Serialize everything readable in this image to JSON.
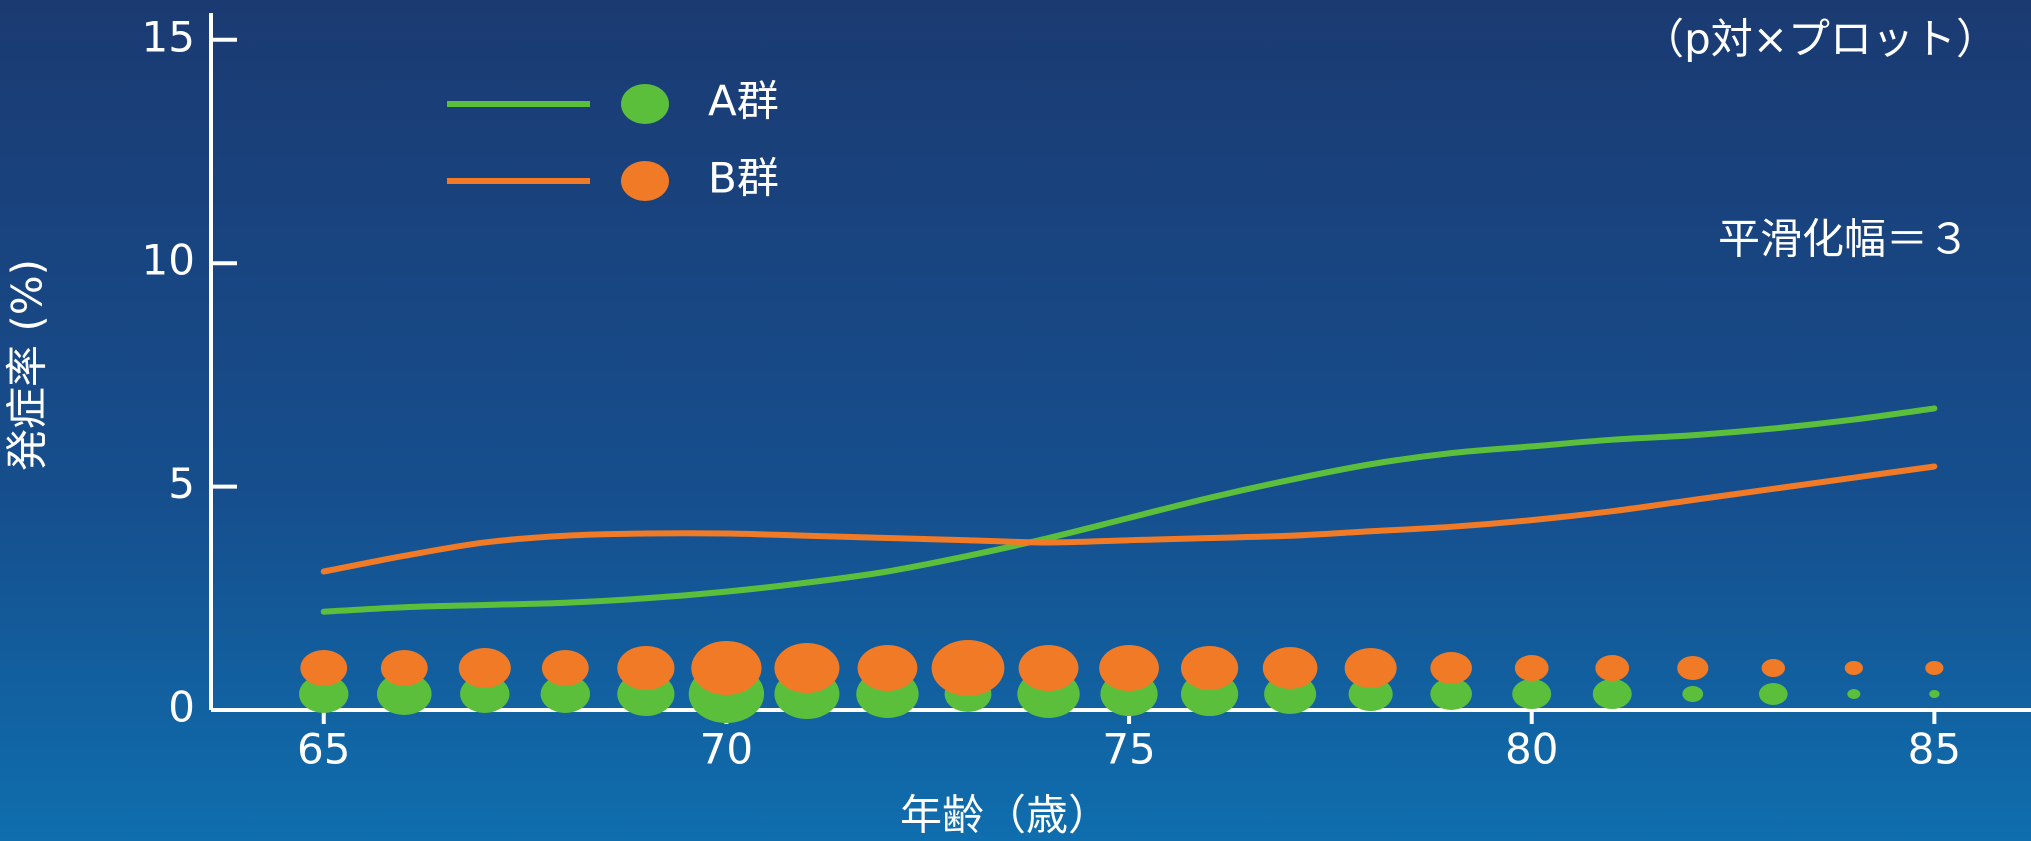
{
  "chart_data": {
    "type": "line",
    "annotations": [
      "（p対×プロット）",
      "平滑化幅＝３"
    ],
    "x_label": "年齢（歳）",
    "y_label": "発症率 (%)",
    "x": [
      65,
      66,
      67,
      68,
      69,
      70,
      71,
      72,
      73,
      74,
      75,
      76,
      77,
      78,
      79,
      80,
      81,
      82,
      83,
      84,
      85
    ],
    "series": [
      {
        "name": "A群",
        "color": "#5cbf3c",
        "values": [
          2.2,
          2.3,
          2.35,
          2.4,
          2.5,
          2.65,
          2.85,
          3.1,
          3.45,
          3.85,
          4.3,
          4.75,
          5.15,
          5.5,
          5.75,
          5.9,
          6.05,
          6.15,
          6.3,
          6.5,
          6.75
        ],
        "sizes": [
          38,
          42,
          38,
          38,
          44,
          58,
          50,
          48,
          36,
          48,
          44,
          44,
          40,
          34,
          32,
          30,
          30,
          16,
          22,
          10,
          8
        ]
      },
      {
        "name": "B群",
        "color": "#f07a26",
        "values": [
          3.1,
          3.45,
          3.75,
          3.9,
          3.95,
          3.95,
          3.9,
          3.85,
          3.8,
          3.75,
          3.8,
          3.85,
          3.9,
          4.0,
          4.1,
          4.25,
          4.45,
          4.7,
          4.95,
          5.2,
          5.45
        ],
        "sizes": [
          36,
          36,
          40,
          36,
          44,
          54,
          50,
          46,
          56,
          46,
          46,
          44,
          42,
          40,
          32,
          26,
          26,
          24,
          18,
          14,
          14
        ]
      }
    ],
    "xlim": [
      63.6,
      86.2
    ],
    "xticks": [
      65,
      70,
      75,
      80,
      85
    ],
    "ylim": [
      0,
      15.6
    ],
    "yticks": [
      0,
      5,
      10,
      15
    ]
  }
}
